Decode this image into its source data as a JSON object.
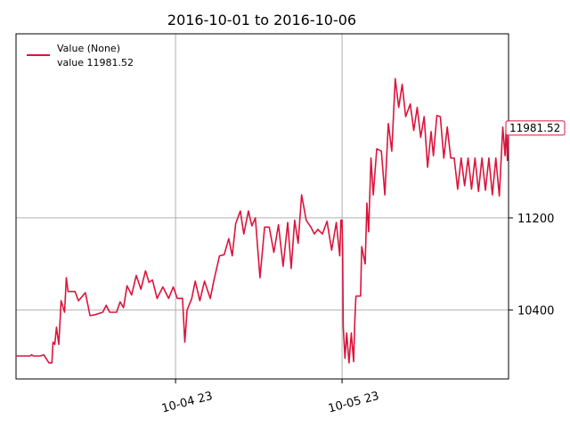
{
  "chart_data": {
    "type": "line",
    "title": "2016-10-01 to 2016-10-06",
    "xlabel": "",
    "ylabel": "",
    "y_axis_side": "right",
    "grid": true,
    "xlim": [
      "2016-10-04 00:00",
      "2016-10-06 23:00"
    ],
    "ylim": [
      9800,
      12800
    ],
    "x_ticks": [
      {
        "label": "10-04 23",
        "value": "2016-10-04 23:00"
      },
      {
        "label": "10-05 23",
        "value": "2016-10-05 23:00"
      }
    ],
    "y_ticks": [
      {
        "label": "10400",
        "value": 10400
      },
      {
        "label": "11200",
        "value": 11200
      }
    ],
    "legend": {
      "position": "top-left",
      "entries": [
        {
          "label": "Value (None)",
          "color": "#dc143c"
        },
        {
          "label": "value 11981.52"
        }
      ]
    },
    "last_value_badge": {
      "label": "11981.52",
      "value": 11981.52
    },
    "series": [
      {
        "color": "#dc143c",
        "points": [
          [
            "2016-10-04 00:00",
            10000
          ],
          [
            "2016-10-04 02:00",
            10000
          ],
          [
            "2016-10-04 02:15",
            10010
          ],
          [
            "2016-10-04 02:30",
            10000
          ],
          [
            "2016-10-04 03:30",
            10000
          ],
          [
            "2016-10-04 04:00",
            10010
          ],
          [
            "2016-10-04 04:45",
            9940
          ],
          [
            "2016-10-04 05:10",
            9940
          ],
          [
            "2016-10-04 05:20",
            10120
          ],
          [
            "2016-10-04 05:35",
            10100
          ],
          [
            "2016-10-04 05:50",
            10250
          ],
          [
            "2016-10-04 06:10",
            10100
          ],
          [
            "2016-10-04 06:30",
            10480
          ],
          [
            "2016-10-04 07:00",
            10380
          ],
          [
            "2016-10-04 07:15",
            10680
          ],
          [
            "2016-10-04 07:30",
            10560
          ],
          [
            "2016-10-04 08:30",
            10560
          ],
          [
            "2016-10-04 09:00",
            10480
          ],
          [
            "2016-10-04 10:00",
            10550
          ],
          [
            "2016-10-04 10:40",
            10350
          ],
          [
            "2016-10-04 11:30",
            10360
          ],
          [
            "2016-10-04 12:30",
            10380
          ],
          [
            "2016-10-04 13:00",
            10440
          ],
          [
            "2016-10-04 13:30",
            10380
          ],
          [
            "2016-10-04 14:30",
            10380
          ],
          [
            "2016-10-04 15:00",
            10470
          ],
          [
            "2016-10-04 15:30",
            10420
          ],
          [
            "2016-10-04 16:00",
            10610
          ],
          [
            "2016-10-04 16:40",
            10530
          ],
          [
            "2016-10-04 17:20",
            10700
          ],
          [
            "2016-10-04 18:00",
            10580
          ],
          [
            "2016-10-04 18:40",
            10740
          ],
          [
            "2016-10-04 19:10",
            10640
          ],
          [
            "2016-10-04 19:40",
            10660
          ],
          [
            "2016-10-04 20:20",
            10500
          ],
          [
            "2016-10-04 21:10",
            10600
          ],
          [
            "2016-10-04 22:00",
            10500
          ],
          [
            "2016-10-04 22:40",
            10600
          ],
          [
            "2016-10-04 23:15",
            10500
          ],
          [
            "2016-10-05 00:00",
            10500
          ],
          [
            "2016-10-05 00:20",
            10120
          ],
          [
            "2016-10-05 00:40",
            10400
          ],
          [
            "2016-10-05 01:20",
            10500
          ],
          [
            "2016-10-05 01:50",
            10650
          ],
          [
            "2016-10-05 02:30",
            10480
          ],
          [
            "2016-10-05 03:10",
            10650
          ],
          [
            "2016-10-05 04:00",
            10500
          ],
          [
            "2016-10-05 04:30",
            10650
          ],
          [
            "2016-10-05 05:20",
            10870
          ],
          [
            "2016-10-05 06:00",
            10880
          ],
          [
            "2016-10-05 06:40",
            11020
          ],
          [
            "2016-10-05 07:10",
            10870
          ],
          [
            "2016-10-05 07:40",
            11150
          ],
          [
            "2016-10-05 08:20",
            11260
          ],
          [
            "2016-10-05 08:50",
            11060
          ],
          [
            "2016-10-05 09:30",
            11260
          ],
          [
            "2016-10-05 10:00",
            11130
          ],
          [
            "2016-10-05 10:30",
            11200
          ],
          [
            "2016-10-05 11:10",
            10680
          ],
          [
            "2016-10-05 11:50",
            11120
          ],
          [
            "2016-10-05 12:30",
            11120
          ],
          [
            "2016-10-05 13:10",
            10900
          ],
          [
            "2016-10-05 13:50",
            11140
          ],
          [
            "2016-10-05 14:30",
            10780
          ],
          [
            "2016-10-05 15:10",
            11160
          ],
          [
            "2016-10-05 15:40",
            10760
          ],
          [
            "2016-10-05 16:10",
            11180
          ],
          [
            "2016-10-05 16:40",
            10980
          ],
          [
            "2016-10-05 17:10",
            11400
          ],
          [
            "2016-10-05 17:50",
            11180
          ],
          [
            "2016-10-05 18:30",
            11120
          ],
          [
            "2016-10-05 19:00",
            11060
          ],
          [
            "2016-10-05 19:30",
            11100
          ],
          [
            "2016-10-05 20:10",
            11060
          ],
          [
            "2016-10-05 20:50",
            11170
          ],
          [
            "2016-10-05 21:30",
            10920
          ],
          [
            "2016-10-05 22:10",
            11160
          ],
          [
            "2016-10-05 22:40",
            10870
          ],
          [
            "2016-10-05 22:50",
            11180
          ],
          [
            "2016-10-05 23:00",
            11180
          ],
          [
            "2016-10-05 23:05",
            10920
          ],
          [
            "2016-10-05 23:10",
            10260
          ],
          [
            "2016-10-05 23:25",
            9980
          ],
          [
            "2016-10-05 23:40",
            10200
          ],
          [
            "2016-10-06 00:00",
            9940
          ],
          [
            "2016-10-06 00:20",
            10200
          ],
          [
            "2016-10-06 00:40",
            9950
          ],
          [
            "2016-10-06 00:50",
            10300
          ],
          [
            "2016-10-06 01:00",
            10520
          ],
          [
            "2016-10-06 01:40",
            10520
          ],
          [
            "2016-10-06 01:50",
            10950
          ],
          [
            "2016-10-06 02:20",
            10800
          ],
          [
            "2016-10-06 02:35",
            11330
          ],
          [
            "2016-10-06 02:50",
            11080
          ],
          [
            "2016-10-06 03:10",
            11720
          ],
          [
            "2016-10-06 03:30",
            11400
          ],
          [
            "2016-10-06 04:00",
            11800
          ],
          [
            "2016-10-06 04:40",
            11780
          ],
          [
            "2016-10-06 05:10",
            11400
          ],
          [
            "2016-10-06 05:40",
            12020
          ],
          [
            "2016-10-06 06:10",
            11780
          ],
          [
            "2016-10-06 06:40",
            12410
          ],
          [
            "2016-10-06 07:10",
            12160
          ],
          [
            "2016-10-06 07:40",
            12360
          ],
          [
            "2016-10-06 08:10",
            12080
          ],
          [
            "2016-10-06 08:50",
            12190
          ],
          [
            "2016-10-06 09:20",
            11960
          ],
          [
            "2016-10-06 09:50",
            12160
          ],
          [
            "2016-10-06 10:20",
            11900
          ],
          [
            "2016-10-06 10:50",
            12080
          ],
          [
            "2016-10-06 11:20",
            11640
          ],
          [
            "2016-10-06 11:50",
            11950
          ],
          [
            "2016-10-06 12:10",
            11740
          ],
          [
            "2016-10-06 12:40",
            12090
          ],
          [
            "2016-10-06 13:10",
            12080
          ],
          [
            "2016-10-06 13:40",
            11720
          ],
          [
            "2016-10-06 14:10",
            11990
          ],
          [
            "2016-10-06 14:40",
            11720
          ],
          [
            "2016-10-06 15:10",
            11720
          ],
          [
            "2016-10-06 15:40",
            11450
          ],
          [
            "2016-10-06 16:10",
            11720
          ],
          [
            "2016-10-06 16:40",
            11480
          ],
          [
            "2016-10-06 17:10",
            11720
          ],
          [
            "2016-10-06 17:40",
            11450
          ],
          [
            "2016-10-06 18:10",
            11720
          ],
          [
            "2016-10-06 18:40",
            11430
          ],
          [
            "2016-10-06 19:10",
            11720
          ],
          [
            "2016-10-06 19:40",
            11440
          ],
          [
            "2016-10-06 20:10",
            11720
          ],
          [
            "2016-10-06 20:40",
            11400
          ],
          [
            "2016-10-06 21:10",
            11720
          ],
          [
            "2016-10-06 21:40",
            11390
          ],
          [
            "2016-10-06 22:10",
            11990
          ],
          [
            "2016-10-06 22:30",
            11740
          ],
          [
            "2016-10-06 22:40",
            11990
          ],
          [
            "2016-10-06 22:50",
            11700
          ],
          [
            "2016-10-06 23:00",
            11981.52
          ]
        ]
      }
    ]
  }
}
